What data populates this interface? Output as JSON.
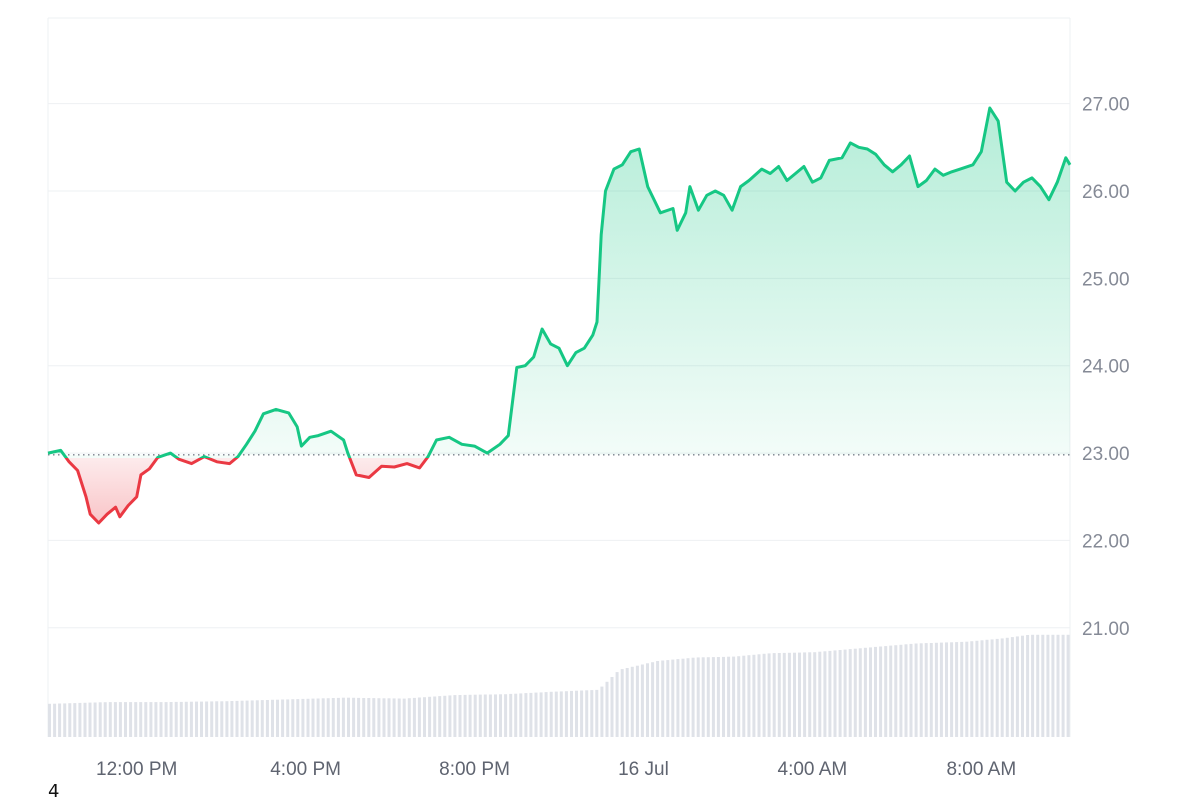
{
  "chart_data": {
    "type": "area",
    "title": "",
    "xlabel": "",
    "ylabel": "",
    "baseline": 22.98,
    "ylim": [
      19.75,
      27.98
    ],
    "y_ticks": [
      "27.00",
      "26.00",
      "25.00",
      "24.00",
      "23.00",
      "22.00",
      "21.00"
    ],
    "y_tick_values": [
      27,
      26,
      25,
      24,
      23,
      22,
      21
    ],
    "x_ticks": [
      "12:00 PM",
      "4:00 PM",
      "8:00 PM",
      "16 Jul",
      "4:00 AM",
      "8:00 AM"
    ],
    "x_tick_hours": [
      12,
      16,
      20,
      24,
      28,
      32
    ],
    "x_range_hours": [
      9.9,
      34.1
    ],
    "colors": {
      "up": "#16c784",
      "down": "#ea3943",
      "grid": "#eef0f3",
      "volume": "#dfe2e8"
    },
    "price_series": {
      "name": "",
      "points": [
        [
          9.9,
          23.0
        ],
        [
          10.2,
          23.03
        ],
        [
          10.4,
          22.9
        ],
        [
          10.6,
          22.8
        ],
        [
          10.8,
          22.5
        ],
        [
          10.9,
          22.3
        ],
        [
          11.1,
          22.2
        ],
        [
          11.3,
          22.3
        ],
        [
          11.5,
          22.38
        ],
        [
          11.6,
          22.27
        ],
        [
          11.8,
          22.4
        ],
        [
          12.0,
          22.5
        ],
        [
          12.1,
          22.75
        ],
        [
          12.3,
          22.82
        ],
        [
          12.5,
          22.95
        ],
        [
          12.8,
          23.0
        ],
        [
          13.0,
          22.93
        ],
        [
          13.3,
          22.88
        ],
        [
          13.6,
          22.96
        ],
        [
          13.9,
          22.9
        ],
        [
          14.2,
          22.88
        ],
        [
          14.4,
          22.96
        ],
        [
          14.6,
          23.1
        ],
        [
          14.8,
          23.25
        ],
        [
          15.0,
          23.45
        ],
        [
          15.3,
          23.5
        ],
        [
          15.6,
          23.46
        ],
        [
          15.8,
          23.3
        ],
        [
          15.9,
          23.08
        ],
        [
          16.1,
          23.18
        ],
        [
          16.3,
          23.2
        ],
        [
          16.6,
          23.25
        ],
        [
          16.9,
          23.15
        ],
        [
          17.0,
          23.0
        ],
        [
          17.2,
          22.75
        ],
        [
          17.5,
          22.72
        ],
        [
          17.8,
          22.85
        ],
        [
          18.1,
          22.84
        ],
        [
          18.4,
          22.88
        ],
        [
          18.7,
          22.83
        ],
        [
          18.9,
          22.96
        ],
        [
          19.1,
          23.15
        ],
        [
          19.4,
          23.18
        ],
        [
          19.7,
          23.1
        ],
        [
          20.0,
          23.08
        ],
        [
          20.3,
          23.0
        ],
        [
          20.6,
          23.1
        ],
        [
          20.8,
          23.2
        ],
        [
          21.0,
          23.98
        ],
        [
          21.2,
          24.0
        ],
        [
          21.4,
          24.1
        ],
        [
          21.6,
          24.42
        ],
        [
          21.8,
          24.25
        ],
        [
          22.0,
          24.2
        ],
        [
          22.2,
          24.0
        ],
        [
          22.4,
          24.15
        ],
        [
          22.6,
          24.2
        ],
        [
          22.8,
          24.35
        ],
        [
          22.9,
          24.5
        ],
        [
          23.0,
          25.5
        ],
        [
          23.1,
          26.0
        ],
        [
          23.3,
          26.25
        ],
        [
          23.5,
          26.3
        ],
        [
          23.7,
          26.45
        ],
        [
          23.9,
          26.48
        ],
        [
          24.1,
          26.05
        ],
        [
          24.4,
          25.75
        ],
        [
          24.7,
          25.8
        ],
        [
          24.8,
          25.55
        ],
        [
          25.0,
          25.75
        ],
        [
          25.1,
          26.05
        ],
        [
          25.3,
          25.78
        ],
        [
          25.5,
          25.95
        ],
        [
          25.7,
          26.0
        ],
        [
          25.9,
          25.95
        ],
        [
          26.1,
          25.78
        ],
        [
          26.3,
          26.05
        ],
        [
          26.5,
          26.12
        ],
        [
          26.8,
          26.25
        ],
        [
          27.0,
          26.2
        ],
        [
          27.2,
          26.28
        ],
        [
          27.4,
          26.12
        ],
        [
          27.6,
          26.2
        ],
        [
          27.8,
          26.28
        ],
        [
          28.0,
          26.1
        ],
        [
          28.2,
          26.15
        ],
        [
          28.4,
          26.35
        ],
        [
          28.7,
          26.38
        ],
        [
          28.9,
          26.55
        ],
        [
          29.1,
          26.5
        ],
        [
          29.3,
          26.48
        ],
        [
          29.5,
          26.42
        ],
        [
          29.7,
          26.3
        ],
        [
          29.9,
          26.22
        ],
        [
          30.1,
          26.3
        ],
        [
          30.3,
          26.4
        ],
        [
          30.5,
          26.05
        ],
        [
          30.7,
          26.12
        ],
        [
          30.9,
          26.25
        ],
        [
          31.1,
          26.18
        ],
        [
          31.3,
          26.22
        ],
        [
          31.5,
          26.25
        ],
        [
          31.8,
          26.3
        ],
        [
          32.0,
          26.45
        ],
        [
          32.2,
          26.95
        ],
        [
          32.4,
          26.8
        ],
        [
          32.6,
          26.1
        ],
        [
          32.8,
          26.0
        ],
        [
          33.0,
          26.1
        ],
        [
          33.2,
          26.15
        ],
        [
          33.4,
          26.05
        ],
        [
          33.6,
          25.9
        ],
        [
          33.8,
          26.1
        ],
        [
          34.0,
          26.38
        ],
        [
          34.1,
          26.3
        ]
      ]
    },
    "volume_series": {
      "name": "",
      "points": [
        [
          9.9,
          20.13
        ],
        [
          11.3,
          20.15
        ],
        [
          12.7,
          20.15
        ],
        [
          14.1,
          20.16
        ],
        [
          15.5,
          20.18
        ],
        [
          16.9,
          20.2
        ],
        [
          18.3,
          20.19
        ],
        [
          19.5,
          20.23
        ],
        [
          20.7,
          20.24
        ],
        [
          21.9,
          20.27
        ],
        [
          22.9,
          20.29
        ],
        [
          23.4,
          20.52
        ],
        [
          24.3,
          20.62
        ],
        [
          25.2,
          20.66
        ],
        [
          26.1,
          20.67
        ],
        [
          27.0,
          20.71
        ],
        [
          28.0,
          20.72
        ],
        [
          29.2,
          20.77
        ],
        [
          30.4,
          20.82
        ],
        [
          31.6,
          20.84
        ],
        [
          32.5,
          20.88
        ],
        [
          33.1,
          20.92
        ],
        [
          34.1,
          20.92
        ]
      ]
    }
  },
  "footnote": "4"
}
